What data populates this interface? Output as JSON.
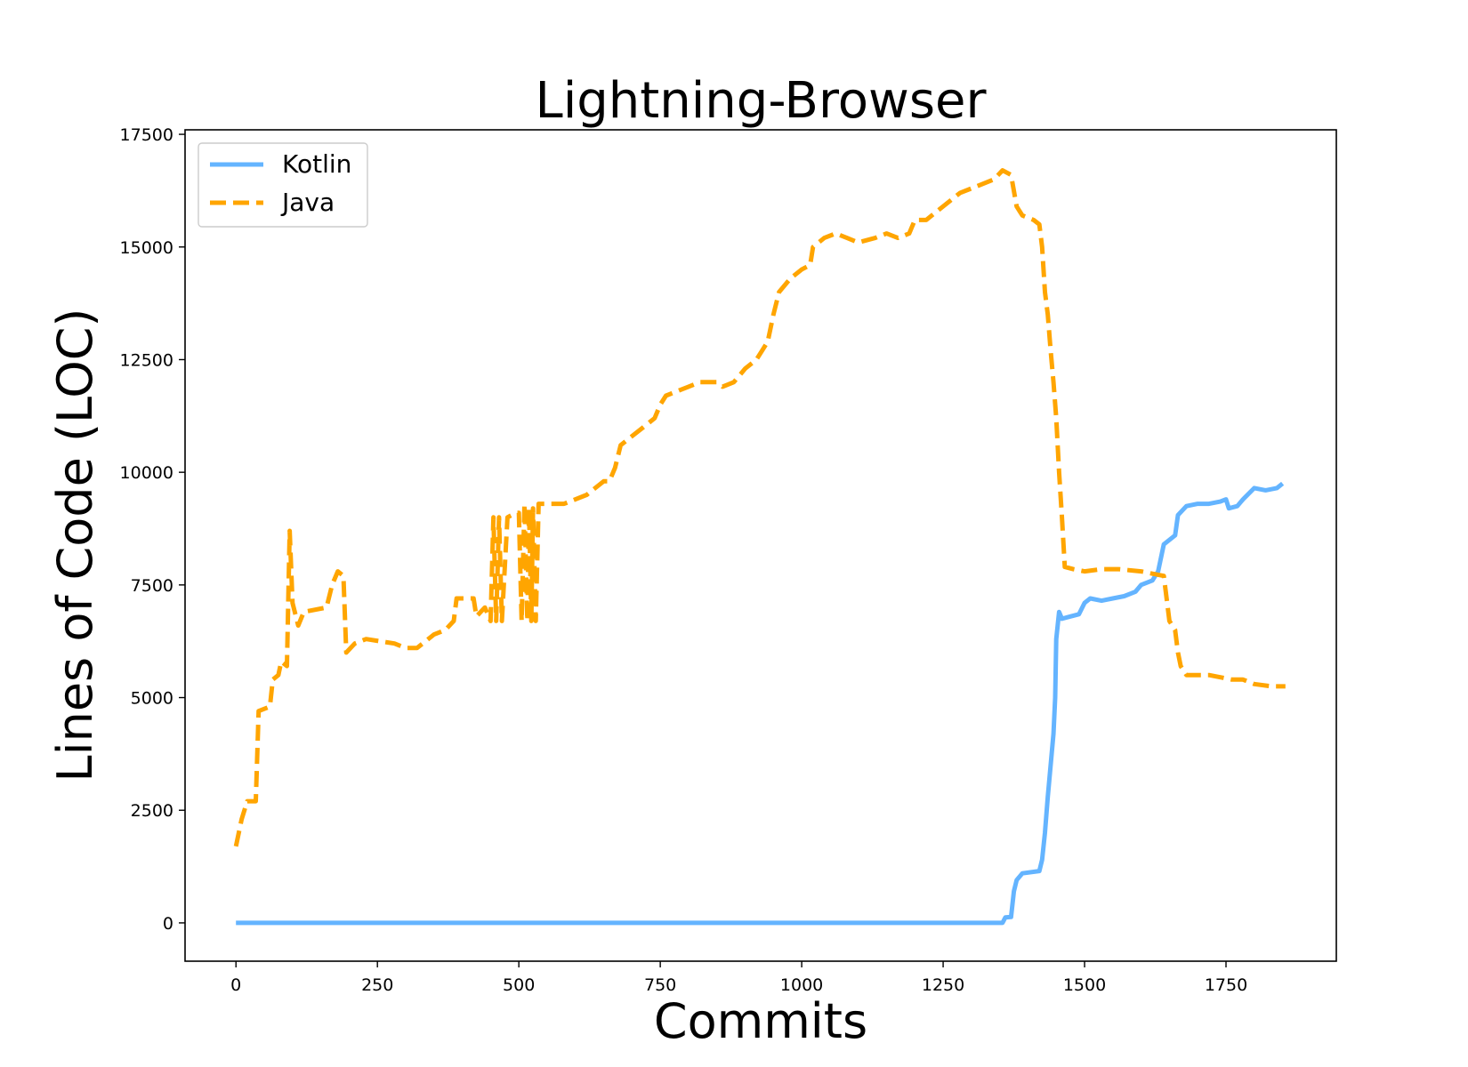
{
  "chart_data": {
    "type": "line",
    "title": "Lightning-Browser",
    "xlabel": "Commits",
    "ylabel": "Lines of Code (LOC)",
    "xlim": [
      -90,
      1945
    ],
    "ylim": [
      -850,
      17600
    ],
    "xticks": [
      0,
      250,
      500,
      750,
      1000,
      1250,
      1500,
      1750
    ],
    "yticks": [
      0,
      2500,
      5000,
      7500,
      10000,
      12500,
      15000,
      17500
    ],
    "grid": false,
    "legend_position": "top-left",
    "series": [
      {
        "name": "Kotlin",
        "color": "#64b4ff",
        "style": "solid",
        "points": [
          [
            0,
            0
          ],
          [
            1355,
            0
          ],
          [
            1360,
            120
          ],
          [
            1370,
            130
          ],
          [
            1375,
            700
          ],
          [
            1380,
            950
          ],
          [
            1390,
            1100
          ],
          [
            1420,
            1150
          ],
          [
            1425,
            1400
          ],
          [
            1430,
            2000
          ],
          [
            1435,
            2800
          ],
          [
            1440,
            3500
          ],
          [
            1445,
            4200
          ],
          [
            1448,
            5000
          ],
          [
            1450,
            6300
          ],
          [
            1455,
            6900
          ],
          [
            1460,
            6750
          ],
          [
            1475,
            6800
          ],
          [
            1490,
            6850
          ],
          [
            1500,
            7100
          ],
          [
            1510,
            7200
          ],
          [
            1530,
            7150
          ],
          [
            1550,
            7200
          ],
          [
            1570,
            7250
          ],
          [
            1590,
            7350
          ],
          [
            1600,
            7500
          ],
          [
            1620,
            7600
          ],
          [
            1630,
            7800
          ],
          [
            1640,
            8400
          ],
          [
            1650,
            8500
          ],
          [
            1660,
            8600
          ],
          [
            1665,
            9050
          ],
          [
            1680,
            9250
          ],
          [
            1700,
            9300
          ],
          [
            1720,
            9300
          ],
          [
            1740,
            9350
          ],
          [
            1750,
            9400
          ],
          [
            1755,
            9200
          ],
          [
            1770,
            9250
          ],
          [
            1780,
            9400
          ],
          [
            1800,
            9650
          ],
          [
            1820,
            9600
          ],
          [
            1840,
            9650
          ],
          [
            1850,
            9750
          ]
        ]
      },
      {
        "name": "Java",
        "color": "#ffa500",
        "style": "dashed",
        "points": [
          [
            0,
            1700
          ],
          [
            10,
            2300
          ],
          [
            20,
            2700
          ],
          [
            35,
            2700
          ],
          [
            40,
            4700
          ],
          [
            60,
            4800
          ],
          [
            65,
            5400
          ],
          [
            75,
            5500
          ],
          [
            80,
            5800
          ],
          [
            90,
            5700
          ],
          [
            95,
            8700
          ],
          [
            100,
            7100
          ],
          [
            110,
            6600
          ],
          [
            120,
            6900
          ],
          [
            160,
            7000
          ],
          [
            170,
            7500
          ],
          [
            180,
            7800
          ],
          [
            190,
            7700
          ],
          [
            195,
            6000
          ],
          [
            210,
            6200
          ],
          [
            230,
            6300
          ],
          [
            280,
            6200
          ],
          [
            300,
            6100
          ],
          [
            320,
            6100
          ],
          [
            330,
            6200
          ],
          [
            340,
            6300
          ],
          [
            350,
            6400
          ],
          [
            370,
            6500
          ],
          [
            385,
            6700
          ],
          [
            390,
            7200
          ],
          [
            420,
            7200
          ],
          [
            425,
            6800
          ],
          [
            440,
            7000
          ],
          [
            450,
            6700
          ],
          [
            455,
            9000
          ],
          [
            460,
            6700
          ],
          [
            465,
            9000
          ],
          [
            470,
            6700
          ],
          [
            480,
            9000
          ],
          [
            495,
            9100
          ],
          [
            500,
            9100
          ],
          [
            505,
            6700
          ],
          [
            510,
            9300
          ],
          [
            515,
            6700
          ],
          [
            518,
            9200
          ],
          [
            522,
            6700
          ],
          [
            525,
            9200
          ],
          [
            530,
            6700
          ],
          [
            535,
            9300
          ],
          [
            560,
            9300
          ],
          [
            580,
            9300
          ],
          [
            600,
            9400
          ],
          [
            620,
            9500
          ],
          [
            630,
            9600
          ],
          [
            650,
            9800
          ],
          [
            660,
            9800
          ],
          [
            670,
            10100
          ],
          [
            680,
            10600
          ],
          [
            700,
            10800
          ],
          [
            720,
            11000
          ],
          [
            740,
            11200
          ],
          [
            750,
            11500
          ],
          [
            760,
            11700
          ],
          [
            780,
            11800
          ],
          [
            800,
            11900
          ],
          [
            820,
            12000
          ],
          [
            840,
            12000
          ],
          [
            850,
            12000
          ],
          [
            860,
            11900
          ],
          [
            880,
            12000
          ],
          [
            900,
            12300
          ],
          [
            920,
            12500
          ],
          [
            930,
            12700
          ],
          [
            940,
            12900
          ],
          [
            950,
            13500
          ],
          [
            960,
            14000
          ],
          [
            980,
            14300
          ],
          [
            1000,
            14500
          ],
          [
            1015,
            14600
          ],
          [
            1020,
            15000
          ],
          [
            1040,
            15200
          ],
          [
            1060,
            15300
          ],
          [
            1080,
            15200
          ],
          [
            1100,
            15100
          ],
          [
            1130,
            15200
          ],
          [
            1150,
            15300
          ],
          [
            1170,
            15200
          ],
          [
            1190,
            15300
          ],
          [
            1200,
            15600
          ],
          [
            1220,
            15600
          ],
          [
            1240,
            15800
          ],
          [
            1260,
            16000
          ],
          [
            1280,
            16200
          ],
          [
            1300,
            16300
          ],
          [
            1320,
            16400
          ],
          [
            1340,
            16500
          ],
          [
            1355,
            16700
          ],
          [
            1370,
            16600
          ],
          [
            1380,
            15900
          ],
          [
            1390,
            15700
          ],
          [
            1410,
            15600
          ],
          [
            1420,
            15500
          ],
          [
            1425,
            15000
          ],
          [
            1430,
            14000
          ],
          [
            1435,
            13500
          ],
          [
            1440,
            12700
          ],
          [
            1445,
            12000
          ],
          [
            1450,
            11200
          ],
          [
            1455,
            10000
          ],
          [
            1460,
            9000
          ],
          [
            1465,
            7900
          ],
          [
            1480,
            7850
          ],
          [
            1500,
            7800
          ],
          [
            1530,
            7850
          ],
          [
            1560,
            7850
          ],
          [
            1600,
            7800
          ],
          [
            1620,
            7750
          ],
          [
            1640,
            7700
          ],
          [
            1650,
            6700
          ],
          [
            1660,
            6500
          ],
          [
            1665,
            6000
          ],
          [
            1670,
            5700
          ],
          [
            1680,
            5500
          ],
          [
            1700,
            5500
          ],
          [
            1720,
            5500
          ],
          [
            1740,
            5450
          ],
          [
            1760,
            5400
          ],
          [
            1780,
            5400
          ],
          [
            1800,
            5300
          ],
          [
            1830,
            5250
          ],
          [
            1855,
            5250
          ]
        ]
      }
    ]
  }
}
